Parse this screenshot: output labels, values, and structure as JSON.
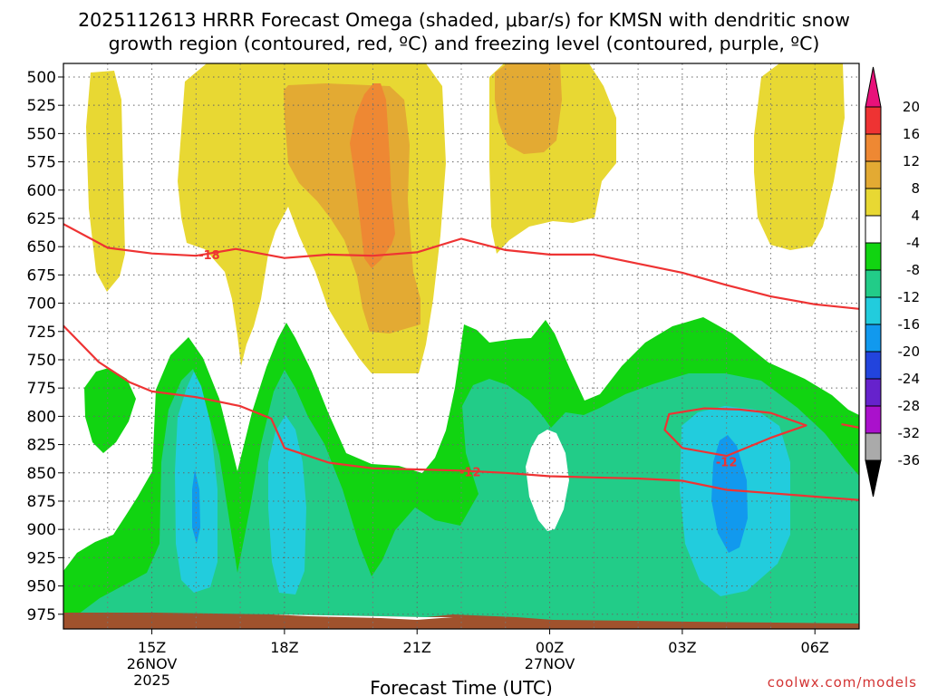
{
  "chart_data": {
    "type": "heatmap",
    "title_line1": "2025112613 HRRR Forecast Omega (shaded, μbar/s) for KMSN with dendritic snow",
    "title_line2": "growth region (contoured, red, ºC) and freezing level (contoured, purple, ºC)",
    "xlabel": "Forecast Time (UTC)",
    "ylabel": "",
    "watermark": "coolwx.com/models",
    "x_range_hours": [
      13,
      31
    ],
    "y_range_hPa": [
      988,
      488
    ],
    "x_ticks": [
      {
        "hour": 15,
        "label": "15Z",
        "date": "26NOV",
        "year": "2025"
      },
      {
        "hour": 18,
        "label": "18Z",
        "date": "",
        "year": ""
      },
      {
        "hour": 21,
        "label": "21Z",
        "date": "",
        "year": ""
      },
      {
        "hour": 24,
        "label": "00Z",
        "date": "27NOV",
        "year": ""
      },
      {
        "hour": 27,
        "label": "03Z",
        "date": "",
        "year": ""
      },
      {
        "hour": 30,
        "label": "06Z",
        "date": "",
        "year": ""
      }
    ],
    "y_ticks": [
      500,
      525,
      550,
      575,
      600,
      625,
      650,
      675,
      700,
      725,
      750,
      775,
      800,
      825,
      850,
      875,
      900,
      925,
      950,
      975
    ],
    "colorbar": {
      "labels": [
        "20",
        "16",
        "12",
        "8",
        "4",
        "-4",
        "-8",
        "-12",
        "-16",
        "-20",
        "-24",
        "-28",
        "-32",
        "-36"
      ],
      "bins": [
        {
          "lo": 16,
          "hi": 20,
          "color": "#ee3333"
        },
        {
          "lo": 12,
          "hi": 16,
          "color": "#ee8833"
        },
        {
          "lo": 8,
          "hi": 12,
          "color": "#e3aa33"
        },
        {
          "lo": 4,
          "hi": 8,
          "color": "#e8d833"
        },
        {
          "lo": -4,
          "hi": 4,
          "color": "#ffffff"
        },
        {
          "lo": -8,
          "hi": -4,
          "color": "#11d411"
        },
        {
          "lo": -12,
          "hi": -8,
          "color": "#22cc88"
        },
        {
          "lo": -16,
          "hi": -12,
          "color": "#22ccdd"
        },
        {
          "lo": -20,
          "hi": -16,
          "color": "#1199ee"
        },
        {
          "lo": -24,
          "hi": -20,
          "color": "#2244dd"
        },
        {
          "lo": -28,
          "hi": -24,
          "color": "#6622cc"
        },
        {
          "lo": -32,
          "hi": -28,
          "color": "#aa11cc"
        },
        {
          "lo": -36,
          "hi": -32,
          "color": "#aaaaaa"
        }
      ],
      "top_arrow_color": "#e8117a",
      "bottom_arrow_color": "#000000"
    },
    "contours": [
      {
        "label": "-18",
        "label_at": {
          "hour": 16.3,
          "p": 657
        },
        "color": "#ee3333",
        "points": [
          [
            13,
            630
          ],
          [
            14,
            651
          ],
          [
            15,
            656
          ],
          [
            16,
            658
          ],
          [
            16.9,
            652
          ],
          [
            18,
            660
          ],
          [
            19,
            657
          ],
          [
            20,
            658
          ],
          [
            21,
            655
          ],
          [
            22.0,
            643
          ],
          [
            23,
            653
          ],
          [
            24,
            657
          ],
          [
            25,
            657
          ],
          [
            26,
            665
          ],
          [
            27,
            673
          ],
          [
            28,
            684
          ],
          [
            29,
            694
          ],
          [
            30,
            701
          ],
          [
            31,
            705
          ]
        ]
      },
      {
        "label": "-12",
        "label_at": {
          "hour": 22.2,
          "p": 849
        },
        "color": "#ee3333",
        "points": [
          [
            13,
            720
          ],
          [
            13.8,
            752
          ],
          [
            14.5,
            770
          ],
          [
            15,
            778
          ],
          [
            16,
            783
          ],
          [
            17,
            791
          ],
          [
            17.7,
            802
          ],
          [
            18,
            828
          ],
          [
            19,
            841
          ],
          [
            20,
            846
          ],
          [
            21,
            847
          ],
          [
            22,
            848
          ],
          [
            23,
            850
          ],
          [
            24,
            853
          ],
          [
            25,
            854
          ],
          [
            26,
            855
          ],
          [
            27,
            857
          ],
          [
            28,
            865
          ],
          [
            29,
            868
          ],
          [
            30,
            871
          ],
          [
            31,
            874
          ]
        ]
      },
      {
        "label": "-12",
        "label_at": {
          "hour": 28.0,
          "p": 840
        },
        "color": "#ee3333",
        "closed": true,
        "points": [
          [
            26.7,
            798
          ],
          [
            27.5,
            793
          ],
          [
            28.3,
            794
          ],
          [
            29,
            797
          ],
          [
            29.8,
            808
          ],
          [
            29,
            819
          ],
          [
            28,
            835
          ],
          [
            27,
            828
          ],
          [
            26.6,
            812
          ]
        ]
      },
      {
        "label": "",
        "label_at": null,
        "color": "#ee3333",
        "points": [
          [
            30.6,
            807
          ],
          [
            31,
            810
          ]
        ]
      }
    ],
    "terrain_color": "#a0522d"
  }
}
